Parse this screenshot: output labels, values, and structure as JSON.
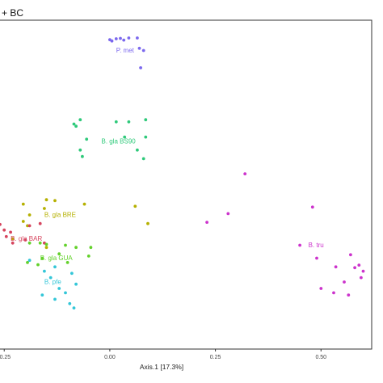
{
  "chart_data": {
    "type": "scatter",
    "title": "+ BC",
    "xlabel": "Axis.1   [17.3%]",
    "ylabel": "",
    "xlim": [
      -0.26,
      0.62
    ],
    "ylim": [
      -0.33,
      0.43
    ],
    "xticks": [
      -0.25,
      0.0,
      0.25,
      0.5
    ],
    "xtick_labels": [
      "-0.25",
      "0.00",
      "0.25",
      "0.50"
    ],
    "grid": false,
    "series": [
      {
        "name": "P. met",
        "color": "#7B68EE",
        "points": [
          [
            0.0,
            0.385
          ],
          [
            0.005,
            0.382
          ],
          [
            0.015,
            0.387
          ],
          [
            0.025,
            0.388
          ],
          [
            0.033,
            0.384
          ],
          [
            0.045,
            0.389
          ],
          [
            0.065,
            0.389
          ],
          [
            0.07,
            0.365
          ],
          [
            0.08,
            0.36
          ],
          [
            0.073,
            0.32
          ]
        ]
      },
      {
        "name": "B. gla BS90",
        "color": "#2EC97A",
        "points": [
          [
            -0.07,
            0.2
          ],
          [
            -0.085,
            0.19
          ],
          [
            -0.08,
            0.185
          ],
          [
            0.015,
            0.195
          ],
          [
            0.045,
            0.195
          ],
          [
            0.085,
            0.2
          ],
          [
            -0.055,
            0.155
          ],
          [
            0.035,
            0.16
          ],
          [
            0.085,
            0.16
          ],
          [
            -0.07,
            0.13
          ],
          [
            -0.065,
            0.115
          ],
          [
            0.065,
            0.13
          ],
          [
            0.08,
            0.11
          ]
        ]
      },
      {
        "name": "B. gla BRE",
        "color": "#B5B000",
        "points": [
          [
            -0.15,
            0.015
          ],
          [
            -0.13,
            0.013
          ],
          [
            -0.205,
            0.005
          ],
          [
            -0.155,
            -0.005
          ],
          [
            -0.19,
            -0.02
          ],
          [
            -0.205,
            -0.035
          ],
          [
            -0.06,
            0.005
          ],
          [
            0.06,
            -0.0
          ],
          [
            -0.195,
            -0.045
          ],
          [
            0.09,
            -0.04
          ],
          [
            -0.23,
            -0.075
          ],
          [
            -0.15,
            -0.095
          ]
        ]
      },
      {
        "name": "B. gla BAR",
        "color": "#D6455E",
        "points": [
          [
            -0.26,
            -0.042
          ],
          [
            -0.25,
            -0.055
          ],
          [
            -0.235,
            -0.06
          ],
          [
            -0.165,
            -0.04
          ],
          [
            -0.19,
            -0.045
          ],
          [
            -0.245,
            -0.07
          ],
          [
            -0.23,
            -0.085
          ],
          [
            -0.2,
            -0.078
          ],
          [
            -0.155,
            -0.085
          ]
        ]
      },
      {
        "name": "B. gla GUA",
        "color": "#63D12B",
        "points": [
          [
            -0.19,
            -0.085
          ],
          [
            -0.165,
            -0.085
          ],
          [
            -0.15,
            -0.088
          ],
          [
            -0.105,
            -0.09
          ],
          [
            -0.08,
            -0.095
          ],
          [
            -0.045,
            -0.095
          ],
          [
            -0.12,
            -0.11
          ],
          [
            -0.16,
            -0.12
          ],
          [
            -0.195,
            -0.13
          ],
          [
            -0.17,
            -0.135
          ],
          [
            -0.1,
            -0.13
          ],
          [
            -0.05,
            -0.115
          ]
        ]
      },
      {
        "name": "B. pfe",
        "color": "#33C6D8",
        "points": [
          [
            -0.19,
            -0.125
          ],
          [
            -0.13,
            -0.14
          ],
          [
            -0.155,
            -0.15
          ],
          [
            -0.09,
            -0.155
          ],
          [
            -0.14,
            -0.165
          ],
          [
            -0.08,
            -0.18
          ],
          [
            -0.12,
            -0.19
          ],
          [
            -0.105,
            -0.2
          ],
          [
            -0.16,
            -0.205
          ],
          [
            -0.095,
            -0.225
          ],
          [
            -0.13,
            -0.215
          ],
          [
            -0.085,
            -0.235
          ]
        ]
      },
      {
        "name": "B. tru",
        "color": "#CC33CC",
        "points": [
          [
            0.32,
            0.075
          ],
          [
            0.48,
            -0.002
          ],
          [
            0.28,
            -0.017
          ],
          [
            0.23,
            -0.037
          ],
          [
            0.45,
            -0.09
          ],
          [
            0.49,
            -0.12
          ],
          [
            0.535,
            -0.14
          ],
          [
            0.57,
            -0.112
          ],
          [
            0.58,
            -0.142
          ],
          [
            0.59,
            -0.136
          ],
          [
            0.6,
            -0.15
          ],
          [
            0.595,
            -0.165
          ],
          [
            0.555,
            -0.175
          ],
          [
            0.53,
            -0.2
          ],
          [
            0.5,
            -0.19
          ],
          [
            0.565,
            -0.205
          ]
        ]
      }
    ]
  }
}
